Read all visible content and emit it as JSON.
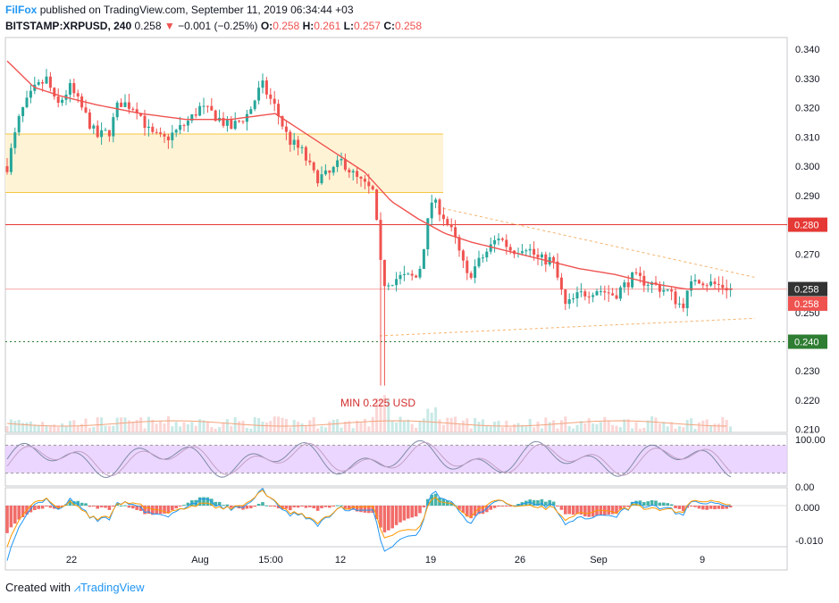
{
  "header": {
    "brand": "FilFox",
    "published": "published on TradingView.com, September 11, 2019 06:34:44 +03",
    "symbol": "BITSTAMP:XRPUSD, 240",
    "last": "0.258",
    "change": "−0.001 (−0.25%)",
    "o_label": "O:",
    "o_val": "0.258",
    "h_label": "H:",
    "h_val": "0.261",
    "l_label": "L:",
    "l_val": "0.257",
    "c_label": "C:",
    "c_val": "0.258"
  },
  "footer": {
    "created": "Created with",
    "brand": "TradingView"
  },
  "colors": {
    "up": "#26a69a",
    "down": "#ef5350",
    "ma": "#ef5350",
    "zone_fill": "#fff3d6",
    "zone_line": "#f5c542",
    "resistance": "#e53935",
    "support": "#2e7d32",
    "rsi_fill": "#e6ccff"
  },
  "chart_data": {
    "type": "candlestick",
    "symbol": "BITSTAMP:XRPUSD",
    "timeframe": "240",
    "x_tick_labels": [
      "22",
      "Aug",
      "15:00",
      "12",
      "19",
      "26",
      "Sep",
      "9"
    ],
    "y_ticks": [
      0.34,
      0.33,
      0.32,
      0.31,
      0.3,
      0.29,
      0.27,
      0.25,
      0.23,
      0.22,
      0.21
    ],
    "y_tick_labels": [
      "0.340",
      "0.330",
      "0.320",
      "0.310",
      "0.300",
      "0.290",
      "0.270",
      "0.250",
      "0.230",
      "0.220",
      "0.210"
    ],
    "ylim": [
      0.209,
      0.344
    ],
    "price_tags": [
      {
        "value": 0.28,
        "label": "0.280",
        "color": "#e53935"
      },
      {
        "value": 0.258,
        "label": "0.258",
        "color": "#333333"
      },
      {
        "value": 0.253,
        "label": "0.258",
        "color": "#ef5350"
      },
      {
        "value": 0.24,
        "label": "0.240",
        "color": "#2e7d32"
      }
    ],
    "resistance_line": 0.28,
    "support_line": 0.24,
    "zone": {
      "from": 0.291,
      "to": 0.311
    },
    "annotation": "MIN 0.225 USD",
    "rsi": {
      "y_tick_labels": [
        "100.00",
        "0.00"
      ],
      "band": [
        80,
        20
      ]
    },
    "macd": {
      "y_tick_labels": [
        "0.000",
        "-0.010"
      ]
    },
    "close_anchors": [
      [
        0,
        0.3
      ],
      [
        15,
        0.318
      ],
      [
        30,
        0.326
      ],
      [
        45,
        0.33
      ],
      [
        55,
        0.32
      ],
      [
        70,
        0.327
      ],
      [
        85,
        0.319
      ],
      [
        100,
        0.31
      ],
      [
        115,
        0.312
      ],
      [
        125,
        0.322
      ],
      [
        145,
        0.32
      ],
      [
        160,
        0.311
      ],
      [
        175,
        0.309
      ],
      [
        190,
        0.312
      ],
      [
        205,
        0.316
      ],
      [
        215,
        0.32
      ],
      [
        230,
        0.318
      ],
      [
        250,
        0.313
      ],
      [
        270,
        0.318
      ],
      [
        285,
        0.328
      ],
      [
        300,
        0.32
      ],
      [
        315,
        0.309
      ],
      [
        330,
        0.305
      ],
      [
        345,
        0.296
      ],
      [
        360,
        0.297
      ],
      [
        375,
        0.302
      ],
      [
        390,
        0.296
      ],
      [
        410,
        0.291
      ],
      [
        420,
        0.26
      ],
      [
        440,
        0.262
      ],
      [
        460,
        0.262
      ],
      [
        475,
        0.288
      ],
      [
        485,
        0.285
      ],
      [
        500,
        0.276
      ],
      [
        515,
        0.262
      ],
      [
        530,
        0.268
      ],
      [
        550,
        0.276
      ],
      [
        565,
        0.271
      ],
      [
        580,
        0.273
      ],
      [
        595,
        0.268
      ],
      [
        610,
        0.268
      ],
      [
        625,
        0.252
      ],
      [
        640,
        0.256
      ],
      [
        660,
        0.258
      ],
      [
        680,
        0.256
      ],
      [
        700,
        0.262
      ],
      [
        720,
        0.26
      ],
      [
        740,
        0.257
      ],
      [
        755,
        0.252
      ],
      [
        770,
        0.262
      ],
      [
        785,
        0.26
      ],
      [
        800,
        0.259
      ],
      [
        812,
        0.258
      ]
    ],
    "ma_anchors": [
      [
        0,
        0.336
      ],
      [
        30,
        0.327
      ],
      [
        60,
        0.324
      ],
      [
        100,
        0.321
      ],
      [
        150,
        0.318
      ],
      [
        200,
        0.316
      ],
      [
        250,
        0.316
      ],
      [
        300,
        0.318
      ],
      [
        330,
        0.312
      ],
      [
        360,
        0.306
      ],
      [
        400,
        0.298
      ],
      [
        430,
        0.288
      ],
      [
        460,
        0.282
      ],
      [
        490,
        0.277
      ],
      [
        520,
        0.274
      ],
      [
        560,
        0.271
      ],
      [
        600,
        0.268
      ],
      [
        640,
        0.265
      ],
      [
        680,
        0.263
      ],
      [
        720,
        0.26
      ],
      [
        760,
        0.258
      ],
      [
        812,
        0.258
      ]
    ]
  }
}
